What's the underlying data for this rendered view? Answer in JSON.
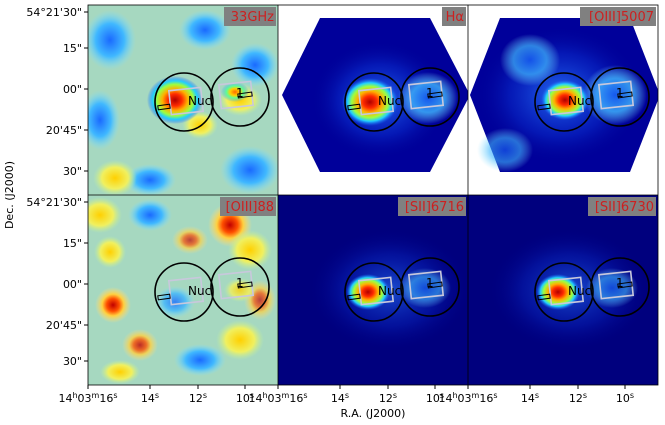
{
  "panels": [
    {
      "label": "33GHz",
      "map": "noise"
    },
    {
      "label": "Hα",
      "map": "hex-blue"
    },
    {
      "label": "[OIII]5007",
      "map": "hex-blue"
    },
    {
      "label": "[OIII]88",
      "map": "noise-red"
    },
    {
      "label": "[SII]6716",
      "map": "dark-blue"
    },
    {
      "label": "[SII]6730",
      "map": "dark-blue"
    }
  ],
  "annotations": {
    "nucleus": "Nuc",
    "region": "1"
  },
  "axes": {
    "xlabel": "R.A. (J2000)",
    "ylabel": "Dec. (J2000)",
    "y_ticks": [
      "54°21'30\"",
      "15\"",
      "00\"",
      "20'45\"",
      "30\""
    ],
    "x_ticks": {
      "hours": "14",
      "minutes": "03",
      "first_seconds": "16",
      "second": "14",
      "third": "12",
      "fourth": "10"
    },
    "h": "h",
    "m": "m",
    "s": "s"
  },
  "colors": {
    "noise_bg": "#9ed2b8",
    "blue_bg": "#00007a",
    "ring": "#000000",
    "box": "#c8c8dc",
    "label_bg": "#808080",
    "label_text": "#cc2020"
  }
}
